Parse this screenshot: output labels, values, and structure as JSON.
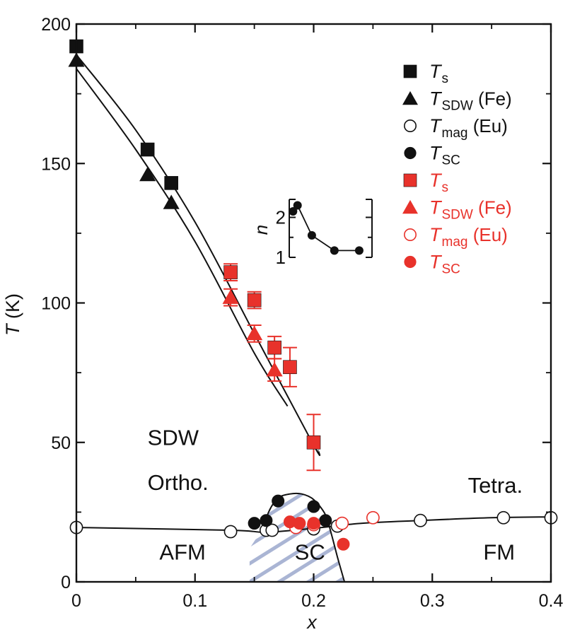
{
  "chart_data": {
    "type": "scatter",
    "xlabel": "x",
    "ylabel": "T (K)",
    "xlim": [
      0,
      0.4
    ],
    "ylim": [
      0,
      200
    ],
    "xticks": [
      0,
      0.1,
      0.2,
      0.3,
      0.4
    ],
    "xtick_labels": [
      "0",
      "0.1",
      "0.2",
      "0.3",
      "0.4"
    ],
    "yticks": [
      0,
      50,
      100,
      150,
      200
    ],
    "ytick_labels": [
      "0",
      "50",
      "100",
      "150",
      "200"
    ],
    "grid": false,
    "legend_position": "top-right",
    "colors": {
      "black": "#111111",
      "red": "#e8322b",
      "hatch": "#aab5d4"
    },
    "regions": [
      {
        "label": "SDW",
        "x": 0.06,
        "y": 49
      },
      {
        "label": "Ortho.",
        "x": 0.06,
        "y": 33
      },
      {
        "label": "Tetra.",
        "x": 0.33,
        "y": 32
      },
      {
        "label": "AFM",
        "x": 0.07,
        "y": 8
      },
      {
        "label": "SC",
        "x": 0.184,
        "y": 8
      },
      {
        "label": "FM",
        "x": 0.343,
        "y": 8
      }
    ],
    "series": [
      {
        "name": "Ts",
        "label_main": "T",
        "label_sub": "s",
        "color": "black",
        "marker": "square",
        "filled": true,
        "points": [
          [
            0,
            192
          ],
          [
            0.06,
            155
          ],
          [
            0.08,
            143
          ]
        ]
      },
      {
        "name": "TSDW (Fe)",
        "label_main": "T",
        "label_sub": "SDW",
        "label_suffix": " (Fe)",
        "color": "black",
        "marker": "triangle",
        "filled": true,
        "points": [
          [
            0,
            187
          ],
          [
            0.06,
            146
          ],
          [
            0.08,
            136
          ]
        ]
      },
      {
        "name": "Tmag (Eu)",
        "label_main": "T",
        "label_sub": "mag",
        "label_suffix": " (Eu)",
        "color": "black",
        "marker": "circle",
        "filled": false,
        "points": [
          [
            0,
            19.5
          ],
          [
            0.13,
            18
          ],
          [
            0.16,
            18.5
          ],
          [
            0.165,
            18.5
          ],
          [
            0.2,
            19
          ],
          [
            0.22,
            20
          ],
          [
            0.29,
            22
          ],
          [
            0.36,
            23
          ],
          [
            0.4,
            23
          ]
        ]
      },
      {
        "name": "TSC",
        "label_main": "T",
        "label_sub": "SC",
        "color": "black",
        "marker": "circle",
        "filled": true,
        "points": [
          [
            0.15,
            21
          ],
          [
            0.16,
            22
          ],
          [
            0.17,
            29
          ],
          [
            0.2,
            27
          ],
          [
            0.21,
            22
          ]
        ]
      },
      {
        "name": "Ts",
        "label_main": "T",
        "label_sub": "s",
        "color": "red",
        "marker": "square",
        "filled": true,
        "points": [
          [
            0.13,
            111,
            3
          ],
          [
            0.15,
            101,
            3
          ],
          [
            0.167,
            84,
            4
          ],
          [
            0.18,
            77,
            7
          ],
          [
            0.2,
            50,
            10
          ]
        ]
      },
      {
        "name": "TSDW (Fe)",
        "label_main": "T",
        "label_sub": "SDW",
        "label_suffix": " (Fe)",
        "color": "red",
        "marker": "triangle",
        "filled": true,
        "points": [
          [
            0.13,
            102,
            3
          ],
          [
            0.15,
            89,
            3
          ],
          [
            0.167,
            76,
            4
          ]
        ]
      },
      {
        "name": "Tmag (Eu)",
        "label_main": "T",
        "label_sub": "mag",
        "label_suffix": " (Eu)",
        "color": "red",
        "marker": "circle",
        "filled": false,
        "points": [
          [
            0.185,
            19.5
          ],
          [
            0.2,
            20.5
          ],
          [
            0.224,
            21
          ],
          [
            0.25,
            23
          ]
        ]
      },
      {
        "name": "TSC",
        "label_main": "T",
        "label_sub": "SC",
        "color": "red",
        "marker": "circle",
        "filled": true,
        "points": [
          [
            0.18,
            21.5
          ],
          [
            0.188,
            21
          ],
          [
            0.2,
            21
          ],
          [
            0.225,
            13.5
          ]
        ]
      }
    ],
    "lines": [
      {
        "id": "Ts-line",
        "points": [
          [
            0,
            189
          ],
          [
            0.05,
            162
          ],
          [
            0.1,
            129
          ],
          [
            0.15,
            89
          ],
          [
            0.2,
            49
          ],
          [
            0.204,
            47
          ]
        ]
      },
      {
        "id": "TSDW-line",
        "points": [
          [
            0,
            184
          ],
          [
            0.05,
            155
          ],
          [
            0.1,
            122
          ],
          [
            0.15,
            82
          ],
          [
            0.178,
            63
          ]
        ]
      },
      {
        "id": "Tmag-line",
        "points": [
          [
            0,
            19.5
          ],
          [
            0.13,
            18.5
          ],
          [
            0.16,
            17.8
          ],
          [
            0.2,
            19.2
          ],
          [
            0.24,
            21
          ],
          [
            0.29,
            22
          ],
          [
            0.35,
            23
          ],
          [
            0.4,
            23.3
          ]
        ]
      },
      {
        "id": "TSC-dome",
        "points": [
          [
            0.157,
            17.5
          ],
          [
            0.162,
            25
          ],
          [
            0.17,
            30
          ],
          [
            0.18,
            31.5
          ],
          [
            0.19,
            31.5
          ],
          [
            0.2,
            29.5
          ],
          [
            0.21,
            24
          ],
          [
            0.215,
            17
          ],
          [
            0.22,
            9
          ],
          [
            0.226,
            0
          ]
        ]
      }
    ],
    "sc_region": [
      [
        0.146,
        0
      ],
      [
        0.146,
        12
      ],
      [
        0.155,
        17.8
      ],
      [
        0.16,
        24
      ],
      [
        0.168,
        29
      ],
      [
        0.18,
        31.5
      ],
      [
        0.19,
        31.5
      ],
      [
        0.2,
        29.5
      ],
      [
        0.21,
        24
      ],
      [
        0.215,
        17
      ],
      [
        0.22,
        9
      ],
      [
        0.226,
        0
      ]
    ],
    "inset": {
      "ylabel": "n",
      "yticks": [
        1,
        2
      ],
      "ytick_labels": [
        "1",
        "2"
      ],
      "ylim": [
        1,
        2.45
      ],
      "xlim": [
        0.14,
        0.25
      ],
      "points": [
        [
          0.145,
          2.15
        ],
        [
          0.151,
          2.3
        ],
        [
          0.17,
          1.55
        ],
        [
          0.2,
          1.17
        ],
        [
          0.233,
          1.17
        ]
      ]
    }
  }
}
